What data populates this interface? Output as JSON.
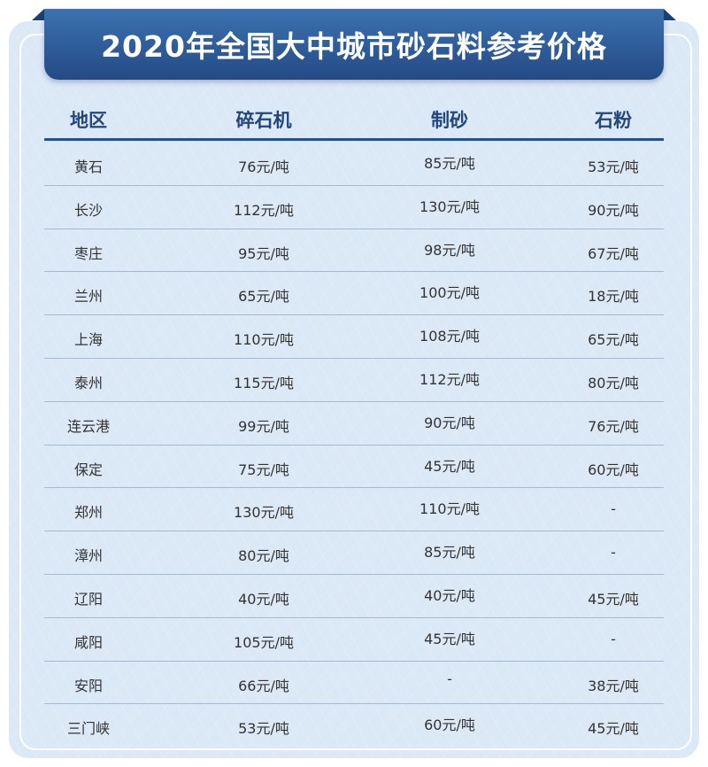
{
  "title": "2020年全国大中城市砂石料参考价格",
  "columns": [
    "地区",
    "碎石机",
    "制砂",
    "石粉"
  ],
  "rows": [
    [
      "黄石",
      "76元/吨",
      "85元/吨",
      "53元/吨"
    ],
    [
      "长沙",
      "112元/吨",
      "130元/吨",
      "90元/吨"
    ],
    [
      "枣庄",
      "95元/吨",
      "98元/吨",
      "67元/吨"
    ],
    [
      "兰州",
      "65元/吨",
      "100元/吨",
      "18元/吨"
    ],
    [
      "上海",
      "110元/吨",
      "108元/吨",
      "65元/吨"
    ],
    [
      "泰州",
      "115元/吨",
      "112元/吨",
      "80元/吨"
    ],
    [
      "连云港",
      "99元/吨",
      "90元/吨",
      "76元/吨"
    ],
    [
      "保定",
      "75元/吨",
      "45元/吨",
      "60元/吨"
    ],
    [
      "郑州",
      "130元/吨",
      "110元/吨",
      "-"
    ],
    [
      "漳州",
      "80元/吨",
      "85元/吨",
      "-"
    ],
    [
      "辽阳",
      "40元/吨",
      "40元/吨",
      "45元/吨"
    ],
    [
      "咸阳",
      "105元/吨",
      "45元/吨",
      "-"
    ],
    [
      "安阳",
      "66元/吨",
      "-",
      "38元/吨"
    ],
    [
      "三门峡",
      "53元/吨",
      "60元/吨",
      "45元/吨"
    ]
  ],
  "colors": {
    "banner": "#2f5f9d",
    "header_text": "#23467e",
    "panel": "#dbe8f6"
  }
}
